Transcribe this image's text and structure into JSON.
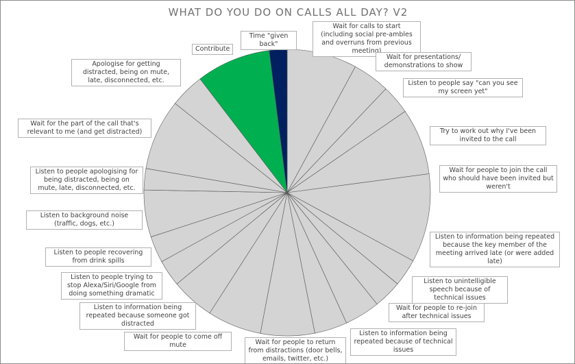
{
  "chart_data": {
    "type": "pie",
    "title": "WHAT DO YOU DO ON CALLS ALL DAY? V2",
    "categories": [
      "Wait for calls to start (including social pre-ambles and overruns from previous meeting)",
      "Wait for presentations/ demonstrations to show",
      "Listen to people say \"can you see my screen yet\"",
      "Try to work out why I've been invited to the call",
      "Wait for people to join the call who should have been invited but weren't",
      "Listen to information being repeated because the key member of the meeting arrived late (or were added late)",
      "Listen to unintelligible speech because of technical issues",
      "Wait for people to re-join after technical issues",
      "Listen to information being repeated because of technical issues",
      "Wait for people to return from distractions (door bells, emails, twitter, etc.)",
      "Wait for people to come off mute",
      "Listen to information being repeated because someone got distracted",
      "Listen to people trying to stop Alexa/Siri/Google from doing something dramatic",
      "Listen to people recovering from drink spills",
      "Listen to background noise (traffic, dogs, etc.)",
      "Listen to people apologising for being distracted, being on mute, late, disconnected, etc.",
      "Wait for the part of the call that's relevant to me (and get distracted)",
      "Apologise for getting distracted, being on mute, late, disconnected, etc.",
      "Contribute",
      "Time \"given back\""
    ],
    "values": [
      7.9,
      4.2,
      3.3,
      7.5,
      10,
      3.1,
      3.2,
      4,
      3.7,
      6.1,
      6.1,
      4.9,
      3,
      3,
      5.3,
      2.4,
      8,
      3.9,
      8.4,
      2
    ],
    "colors": [
      "#d4d4d4",
      "#d4d4d4",
      "#d4d4d4",
      "#d4d4d4",
      "#d4d4d4",
      "#d4d4d4",
      "#d4d4d4",
      "#d4d4d4",
      "#d4d4d4",
      "#d4d4d4",
      "#d4d4d4",
      "#d4d4d4",
      "#d4d4d4",
      "#d4d4d4",
      "#d4d4d4",
      "#d4d4d4",
      "#d4d4d4",
      "#d4d4d4",
      "#00b050",
      "#002060"
    ]
  }
}
